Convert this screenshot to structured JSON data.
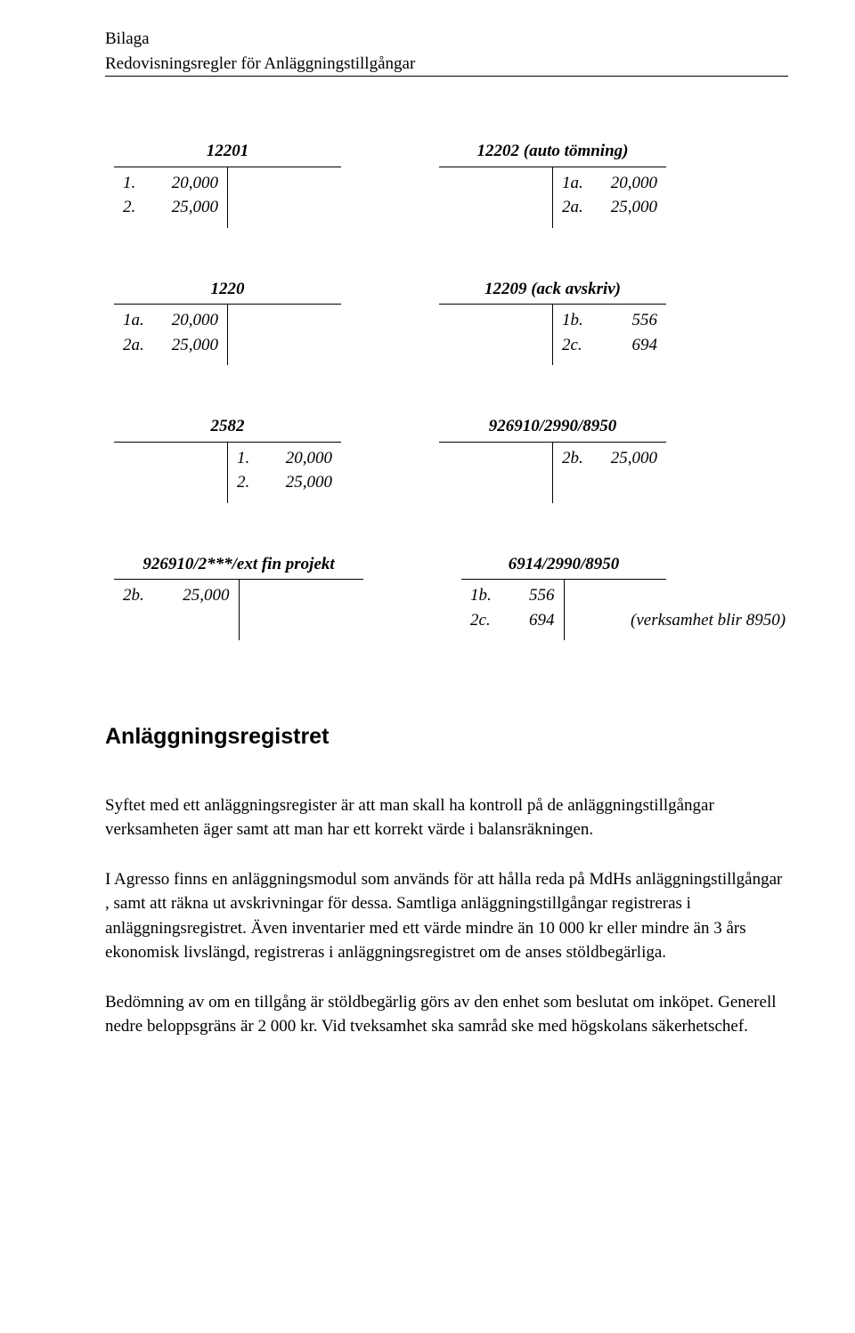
{
  "header": {
    "line1": "Bilaga",
    "line2": "Redovisningsregler för Anläggningstillgångar"
  },
  "taccounts": {
    "rows": [
      {
        "left": {
          "title": "12201",
          "debit": [
            {
              "idx": "1.",
              "val": "20,000"
            },
            {
              "idx": "2.",
              "val": "25,000"
            }
          ],
          "credit": []
        },
        "right": {
          "title": "12202 (auto tömning)",
          "debit": [],
          "credit": [
            {
              "idx": "1a.",
              "val": "20,000"
            },
            {
              "idx": "2a.",
              "val": "25,000"
            }
          ]
        }
      },
      {
        "left": {
          "title": "1220",
          "debit": [
            {
              "idx": "1a.",
              "val": "20,000"
            },
            {
              "idx": "2a.",
              "val": "25,000"
            }
          ],
          "credit": []
        },
        "right": {
          "title": "12209 (ack avskriv)",
          "debit": [],
          "credit": [
            {
              "idx": "1b.",
              "val": "556"
            },
            {
              "idx": "2c.",
              "val": "694"
            }
          ]
        }
      },
      {
        "left": {
          "title": "2582",
          "debit": [],
          "credit": [
            {
              "idx": "1.",
              "val": "20,000"
            },
            {
              "idx": "2.",
              "val": "25,000"
            }
          ]
        },
        "right": {
          "title": "926910/2990/8950",
          "debit": [],
          "credit": [
            {
              "idx": "2b.",
              "val": "25,000"
            }
          ]
        }
      },
      {
        "left": {
          "title": "926910/2***/ext fin projekt",
          "debit": [
            {
              "idx": "2b.",
              "val": "25,000"
            }
          ],
          "credit": []
        },
        "right": {
          "title": "6914/2990/8950",
          "debit": [
            {
              "idx": "1b.",
              "val": "556"
            },
            {
              "idx": "2c.",
              "val": "694"
            }
          ],
          "credit": [],
          "note": "(verksamhet blir 8950)"
        }
      }
    ]
  },
  "section": {
    "heading": "Anläggningsregistret",
    "p1": "Syftet med ett anläggningsregister är att man skall ha kontroll på de anläggningstillgångar verksamheten äger samt att man har ett korrekt värde i balansräkningen.",
    "p2": "I Agresso finns en anläggningsmodul som  används för att hålla reda på MdHs anläggningstillgångar , samt att räkna ut avskrivningar för dessa. Samtliga anläggningstillgångar  registreras i anläggningsregistret. Även inventarier med ett värde mindre än 10 000 kr eller mindre än 3 års ekonomisk livslängd, registreras i anläggningsregistret om de anses stöldbegärliga.",
    "p3": "Bedömning av om en tillgång är stöldbegärlig görs av den enhet som beslutat om inköpet. Generell nedre beloppsgräns är 2 000 kr. Vid tveksamhet ska samråd ske med högskolans säkerhetschef."
  }
}
